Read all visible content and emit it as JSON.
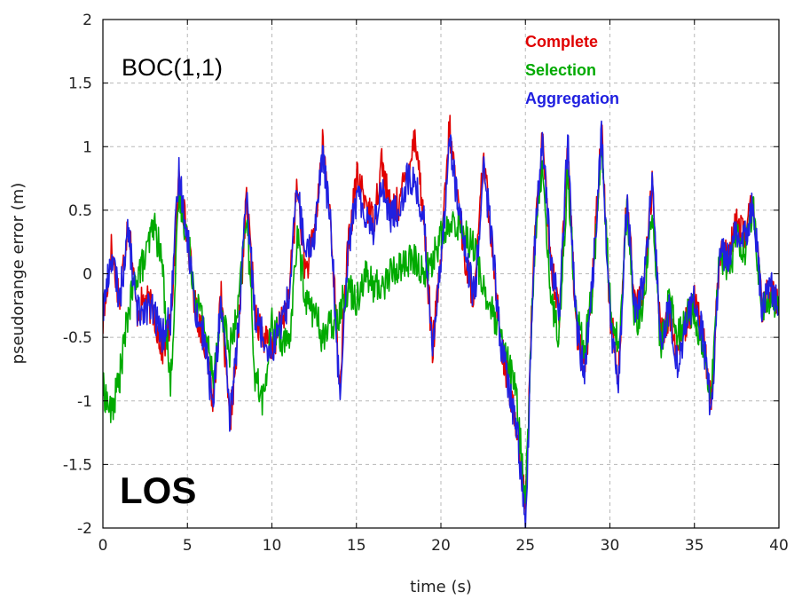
{
  "chart_data": {
    "type": "line",
    "title": "",
    "xlabel": "time (s)",
    "ylabel": "pseudorange error (m)",
    "xlim": [
      0,
      40
    ],
    "ylim": [
      -2,
      2
    ],
    "xticks": [
      0,
      5,
      10,
      15,
      20,
      25,
      30,
      35,
      40
    ],
    "yticks": [
      -2,
      -1.5,
      -1,
      -0.5,
      0,
      0.5,
      1,
      1.5,
      2
    ],
    "xtick_labels": [
      "0",
      "5",
      "10",
      "15",
      "20",
      "25",
      "30",
      "35",
      "40"
    ],
    "ytick_labels": [
      "-2",
      "-1.5",
      "-1",
      "-0.5",
      "0",
      "0.5",
      "1",
      "1.5",
      "2"
    ],
    "grid": true,
    "legend_placement": "top-right",
    "annotations": {
      "signal": "BOC(1,1)",
      "condition": "LOS"
    },
    "series": [
      {
        "name": "Complete",
        "color": "#e00000",
        "x": [
          0,
          0.5,
          1,
          1.5,
          2,
          2.5,
          3,
          3.5,
          4,
          4.5,
          5,
          5.5,
          6,
          6.5,
          7,
          7.5,
          8,
          8.5,
          9,
          9.5,
          10,
          10.5,
          11,
          11.5,
          12,
          12.5,
          13,
          13.5,
          14,
          14.5,
          15,
          15.5,
          16,
          16.5,
          17,
          17.5,
          18,
          18.5,
          19,
          19.5,
          20,
          20.5,
          21,
          21.5,
          22,
          22.5,
          23,
          23.5,
          24,
          24.5,
          25,
          25.5,
          26,
          26.5,
          27,
          27.5,
          28,
          28.5,
          29,
          29.5,
          30,
          30.5,
          31,
          31.5,
          32,
          32.5,
          33,
          33.5,
          34,
          34.5,
          35,
          35.5,
          36,
          36.5,
          37,
          37.5,
          38,
          38.5,
          39,
          39.5,
          40
        ],
        "y": [
          -0.4,
          0.2,
          -0.2,
          0.45,
          -0.3,
          -0.2,
          -0.3,
          -0.6,
          -0.4,
          0.75,
          0.3,
          -0.3,
          -0.5,
          -1.0,
          -0.2,
          -1.2,
          -0.5,
          0.6,
          -0.3,
          -0.5,
          -0.6,
          -0.4,
          -0.2,
          0.7,
          0.0,
          0.3,
          1.0,
          0.4,
          -0.9,
          0.2,
          0.75,
          0.6,
          0.4,
          0.9,
          0.5,
          0.55,
          0.8,
          1.1,
          0.4,
          -0.6,
          0.1,
          1.15,
          0.6,
          0.05,
          -0.2,
          0.9,
          0.3,
          -0.5,
          -0.9,
          -1.2,
          -1.85,
          0.2,
          1.05,
          0.1,
          -0.3,
          0.95,
          -0.4,
          -0.8,
          0.0,
          1.15,
          -0.3,
          -0.8,
          0.6,
          -0.3,
          -0.1,
          0.7,
          -0.5,
          -0.3,
          -0.7,
          -0.4,
          -0.2,
          -0.5,
          -1.0,
          0.2,
          0.1,
          0.4,
          0.3,
          0.6,
          -0.3,
          -0.1,
          -0.3
        ]
      },
      {
        "name": "Selection",
        "color": "#00aa00",
        "x": [
          0,
          0.5,
          1,
          1.5,
          2,
          2.5,
          3,
          3.5,
          4,
          4.5,
          5,
          5.5,
          6,
          6.5,
          7,
          7.5,
          8,
          8.5,
          9,
          9.5,
          10,
          10.5,
          11,
          11.5,
          12,
          12.5,
          13,
          13.5,
          14,
          14.5,
          15,
          15.5,
          16,
          16.5,
          17,
          17.5,
          18,
          18.5,
          19,
          19.5,
          20,
          20.5,
          21,
          21.5,
          22,
          22.5,
          23,
          23.5,
          24,
          24.5,
          25,
          25.5,
          26,
          26.5,
          27,
          27.5,
          28,
          28.5,
          29,
          29.5,
          30,
          30.5,
          31,
          31.5,
          32,
          32.5,
          33,
          33.5,
          34,
          34.5,
          35,
          35.5,
          36,
          36.5,
          37,
          37.5,
          38,
          38.5,
          39,
          39.5,
          40
        ],
        "y": [
          -0.9,
          -1.1,
          -0.8,
          -0.3,
          0.0,
          0.1,
          0.4,
          0.1,
          -0.9,
          0.6,
          0.3,
          -0.2,
          -0.4,
          -0.8,
          -0.3,
          -0.6,
          -0.3,
          0.5,
          -0.8,
          -1.0,
          -0.4,
          -0.5,
          -0.6,
          0.3,
          -0.2,
          -0.3,
          -0.5,
          -0.4,
          -0.3,
          -0.1,
          -0.2,
          0.0,
          -0.1,
          -0.1,
          0.0,
          0.05,
          0.1,
          0.1,
          0.0,
          0.1,
          0.3,
          0.35,
          0.4,
          0.3,
          0.2,
          -0.1,
          -0.3,
          -0.5,
          -0.7,
          -1.0,
          -1.8,
          0.1,
          0.9,
          -0.2,
          -0.5,
          0.8,
          -0.3,
          -0.6,
          -0.1,
          1.0,
          -0.2,
          -0.6,
          0.5,
          -0.4,
          -0.2,
          0.5,
          -0.6,
          -0.2,
          -0.5,
          -0.3,
          -0.3,
          -0.6,
          -0.9,
          0.2,
          0.0,
          0.3,
          0.2,
          0.5,
          -0.3,
          -0.2,
          -0.3
        ]
      },
      {
        "name": "Aggregation",
        "color": "#2020e0",
        "x": [
          0,
          0.5,
          1,
          1.5,
          2,
          2.5,
          3,
          3.5,
          4,
          4.5,
          5,
          5.5,
          6,
          6.5,
          7,
          7.5,
          8,
          8.5,
          9,
          9.5,
          10,
          10.5,
          11,
          11.5,
          12,
          12.5,
          13,
          13.5,
          14,
          14.5,
          15,
          15.5,
          16,
          16.5,
          17,
          17.5,
          18,
          18.5,
          19,
          19.5,
          20,
          20.5,
          21,
          21.5,
          22,
          22.5,
          23,
          23.5,
          24,
          24.5,
          25,
          25.5,
          26,
          26.5,
          27,
          27.5,
          28,
          28.5,
          29,
          29.5,
          30,
          30.5,
          31,
          31.5,
          32,
          32.5,
          33,
          33.5,
          34,
          34.5,
          35,
          35.5,
          36,
          36.5,
          37,
          37.5,
          38,
          38.5,
          39,
          39.5,
          40
        ],
        "y": [
          -0.3,
          0.15,
          -0.2,
          0.35,
          -0.3,
          -0.25,
          -0.3,
          -0.5,
          -0.35,
          0.8,
          0.3,
          -0.3,
          -0.5,
          -1.05,
          -0.2,
          -1.15,
          -0.45,
          0.6,
          -0.3,
          -0.5,
          -0.6,
          -0.4,
          -0.2,
          0.7,
          0.1,
          0.3,
          0.95,
          0.35,
          -0.95,
          0.2,
          0.6,
          0.5,
          0.35,
          0.7,
          0.45,
          0.5,
          0.75,
          0.7,
          0.4,
          -0.55,
          0.05,
          1.1,
          0.55,
          0.1,
          -0.2,
          0.85,
          0.3,
          -0.5,
          -0.9,
          -1.2,
          -2.0,
          0.1,
          1.1,
          0.1,
          -0.3,
          1.05,
          -0.4,
          -0.8,
          0.0,
          1.1,
          -0.35,
          -0.9,
          0.55,
          -0.3,
          -0.1,
          0.7,
          -0.5,
          -0.3,
          -0.7,
          -0.4,
          -0.2,
          -0.5,
          -1.1,
          0.2,
          0.1,
          0.35,
          0.3,
          0.55,
          -0.3,
          -0.1,
          -0.3
        ]
      }
    ]
  }
}
